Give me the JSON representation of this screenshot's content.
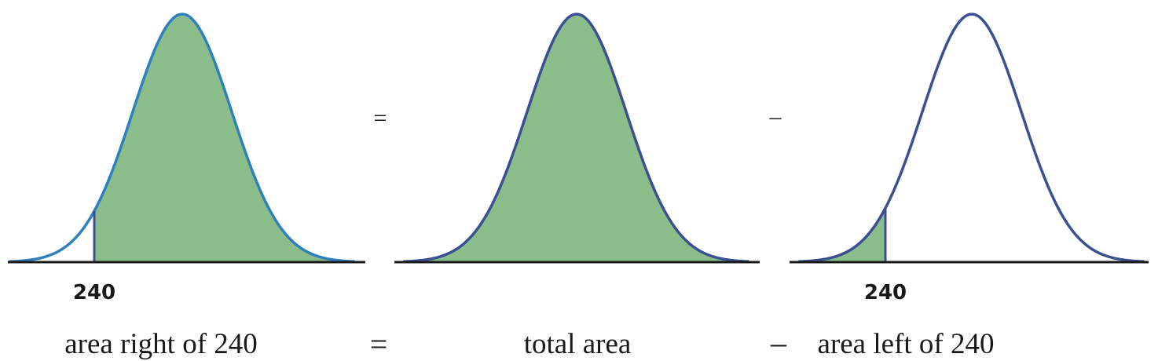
{
  "colors": {
    "fill": "#8bbd8b",
    "curve_left": "#2e7fbf",
    "curve": "#3b4f93",
    "axis": "#1a1a1a"
  },
  "diagram": {
    "panels": [
      {
        "shade": "right",
        "cut_label": "240",
        "caption": "area right of 240"
      },
      {
        "shade": "all",
        "cut_label": "",
        "caption": "total area"
      },
      {
        "shade": "left",
        "cut_label": "240",
        "caption": "area left of 240"
      }
    ],
    "operators": {
      "top": [
        "=",
        "–"
      ],
      "bottom": [
        "=",
        "–"
      ]
    }
  }
}
